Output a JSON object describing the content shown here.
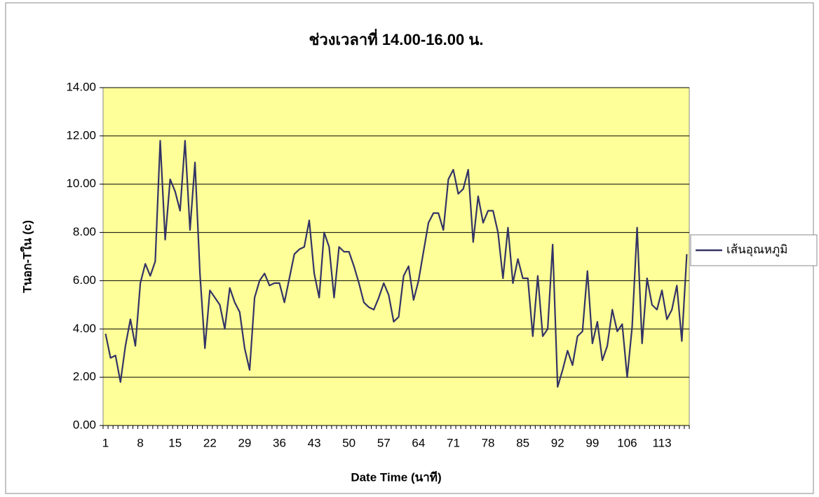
{
  "chart_data": {
    "type": "line",
    "title": "ช่วงเวลาที่ 14.00-16.00 น.",
    "x_label": "Date Time (นาที)",
    "y_label": "Tนอก-Tใน (c)",
    "categories": [
      "1",
      null,
      null,
      null,
      null,
      null,
      null,
      "8",
      null,
      null,
      null,
      null,
      null,
      null,
      "15",
      null,
      null,
      null,
      null,
      null,
      null,
      "22",
      null,
      null,
      null,
      null,
      null,
      null,
      "29",
      null,
      null,
      null,
      null,
      null,
      null,
      "36",
      null,
      null,
      null,
      null,
      null,
      null,
      "43",
      null,
      null,
      null,
      null,
      null,
      null,
      "50",
      null,
      null,
      null,
      null,
      null,
      null,
      "57",
      null,
      null,
      null,
      null,
      null,
      null,
      "64",
      null,
      null,
      null,
      null,
      null,
      null,
      "71",
      null,
      null,
      null,
      null,
      null,
      null,
      "78",
      null,
      null,
      null,
      null,
      null,
      null,
      "85",
      null,
      null,
      null,
      null,
      null,
      null,
      "92",
      null,
      null,
      null,
      null,
      null,
      null,
      "99",
      null,
      null,
      null,
      null,
      null,
      null,
      "106",
      null,
      null,
      null,
      null,
      null,
      null,
      "113",
      null,
      null,
      null,
      null,
      null
    ],
    "series": [
      {
        "name": "เส้นอุณหภูมิ",
        "color": "#333366",
        "values": [
          3.8,
          2.8,
          2.9,
          1.8,
          3.3,
          4.4,
          3.3,
          5.9,
          6.7,
          6.2,
          6.8,
          11.8,
          7.7,
          10.2,
          9.7,
          8.9,
          11.8,
          8.1,
          10.9,
          6.3,
          3.2,
          5.6,
          5.3,
          5.0,
          4.0,
          5.7,
          5.1,
          4.7,
          3.2,
          2.3,
          5.3,
          6.0,
          6.3,
          5.8,
          5.9,
          5.9,
          5.1,
          6.1,
          7.1,
          7.3,
          7.4,
          8.5,
          6.3,
          5.3,
          8.0,
          7.4,
          5.3,
          7.4,
          7.2,
          7.2,
          6.6,
          5.9,
          5.1,
          4.9,
          4.8,
          5.3,
          5.9,
          5.4,
          4.3,
          4.5,
          6.2,
          6.6,
          5.2,
          6.0,
          7.2,
          8.4,
          8.8,
          8.8,
          8.1,
          10.2,
          10.6,
          9.6,
          9.8,
          10.6,
          7.6,
          9.5,
          8.4,
          8.9,
          8.9,
          8.0,
          6.1,
          8.2,
          5.9,
          6.9,
          6.1,
          6.1,
          3.7,
          6.2,
          3.7,
          4.0,
          7.5,
          1.6,
          2.3,
          3.1,
          2.5,
          3.7,
          3.9,
          6.4,
          3.4,
          4.3,
          2.7,
          3.3,
          4.8,
          3.9,
          4.2,
          2.0,
          4.1,
          8.2,
          3.4,
          6.1,
          5.0,
          4.8,
          5.6,
          4.4,
          4.8,
          5.8,
          3.5,
          7.1
        ]
      }
    ],
    "ylim": [
      0,
      14
    ],
    "yticks": [
      {
        "value": 0,
        "label": "0.00"
      },
      {
        "value": 2,
        "label": "2.00"
      },
      {
        "value": 4,
        "label": "4.00"
      },
      {
        "value": 6,
        "label": "6.00"
      },
      {
        "value": 8,
        "label": "8.00"
      },
      {
        "value": 10,
        "label": "10.00"
      },
      {
        "value": 12,
        "label": "12.00"
      },
      {
        "value": 14,
        "label": "14.00"
      }
    ],
    "grid": true,
    "legend": "right",
    "plot_background": "#ffff99"
  }
}
